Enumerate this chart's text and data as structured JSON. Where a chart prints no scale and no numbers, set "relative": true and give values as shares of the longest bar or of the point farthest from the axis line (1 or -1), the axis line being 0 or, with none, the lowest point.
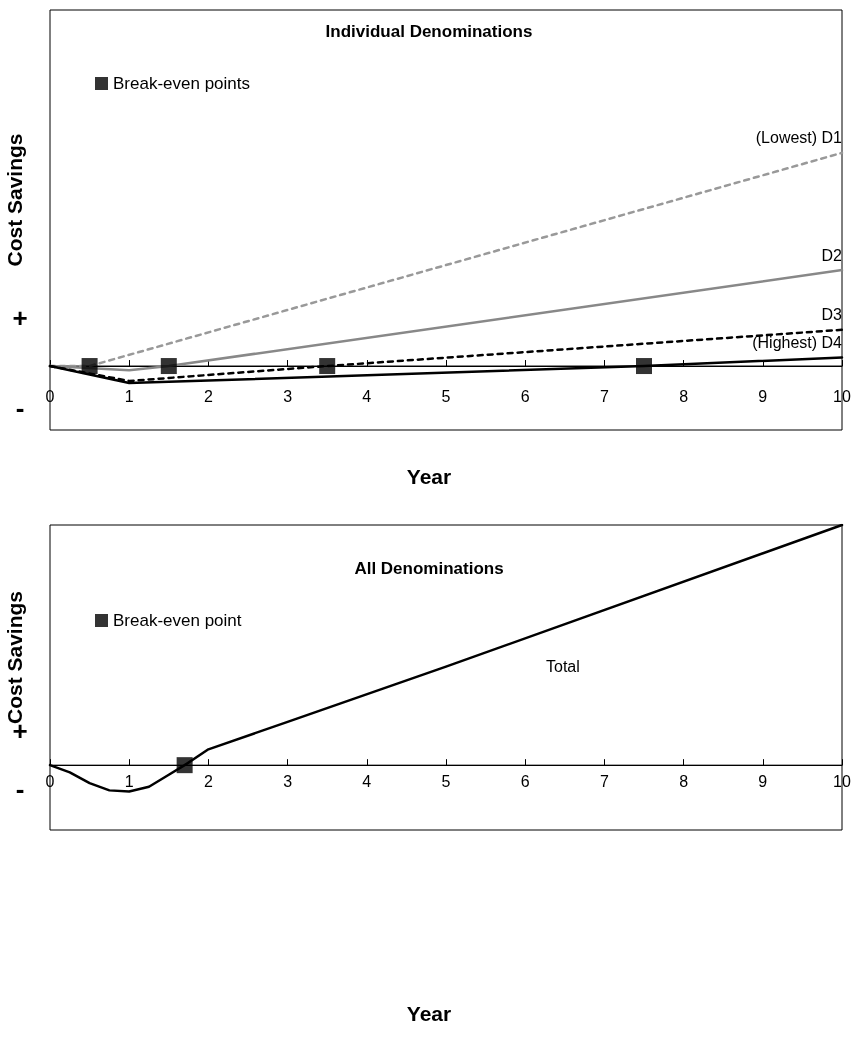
{
  "chart_data": [
    {
      "type": "line",
      "title": "Individual Denominations",
      "xlabel": "Year",
      "ylabel": "Cost Savings",
      "annotations": [
        "+",
        "-"
      ],
      "relative": true,
      "xlim": [
        0,
        10
      ],
      "xticks": [
        0,
        1,
        2,
        3,
        4,
        5,
        6,
        7,
        8,
        9,
        10
      ],
      "legend": "top left",
      "grid": false,
      "marker": "none",
      "series": [
        {
          "name": "(Lowest) D1",
          "color": "#999999",
          "line_style": "dashed",
          "x": [
            0,
            0.5,
            10
          ],
          "values": [
            0,
            0,
            1
          ]
        },
        {
          "name": "D2",
          "color": "#888888",
          "line_style": "solid",
          "x": [
            0,
            1,
            1.5,
            10
          ],
          "values": [
            0,
            -0.02,
            0,
            0.45
          ]
        },
        {
          "name": "D3",
          "color": "#000000",
          "line_style": "dashed",
          "x": [
            0,
            1,
            3.5,
            10
          ],
          "values": [
            0,
            -0.07,
            0,
            0.17
          ]
        },
        {
          "name": "(Highest) D4",
          "color": "#000000",
          "line_style": "solid",
          "x": [
            0,
            1,
            7.5,
            10
          ],
          "values": [
            0,
            -0.08,
            0,
            0.04
          ]
        },
        {
          "name": "Break-even points",
          "type": "scatter",
          "marker": "square",
          "color": "#000000",
          "x": [
            0.5,
            1.5,
            3.5,
            7.5
          ],
          "values": [
            0,
            0,
            0,
            0
          ]
        }
      ]
    },
    {
      "type": "line",
      "title": "All Denominations",
      "xlabel": "Year",
      "ylabel": "Cost Savings",
      "annotations": [
        "+",
        "-"
      ],
      "relative": true,
      "xlim": [
        0,
        10
      ],
      "xticks": [
        0,
        1,
        2,
        3,
        4,
        5,
        6,
        7,
        8,
        9,
        10
      ],
      "legend": "top left",
      "grid": false,
      "marker": "none",
      "series": [
        {
          "name": "Total",
          "color": "#000000",
          "line_style": "solid",
          "x": [
            0,
            0.25,
            0.5,
            0.75,
            1,
            1.25,
            1.5,
            1.7,
            2,
            3,
            5,
            10
          ],
          "values": [
            0,
            -0.03,
            -0.075,
            -0.105,
            -0.11,
            -0.09,
            -0.04,
            0,
            0.066,
            0.18,
            0.41,
            1
          ]
        },
        {
          "name": "Break-even point",
          "type": "scatter",
          "marker": "square",
          "color": "#000000",
          "x": [
            1.7
          ],
          "values": [
            0
          ]
        }
      ]
    }
  ]
}
